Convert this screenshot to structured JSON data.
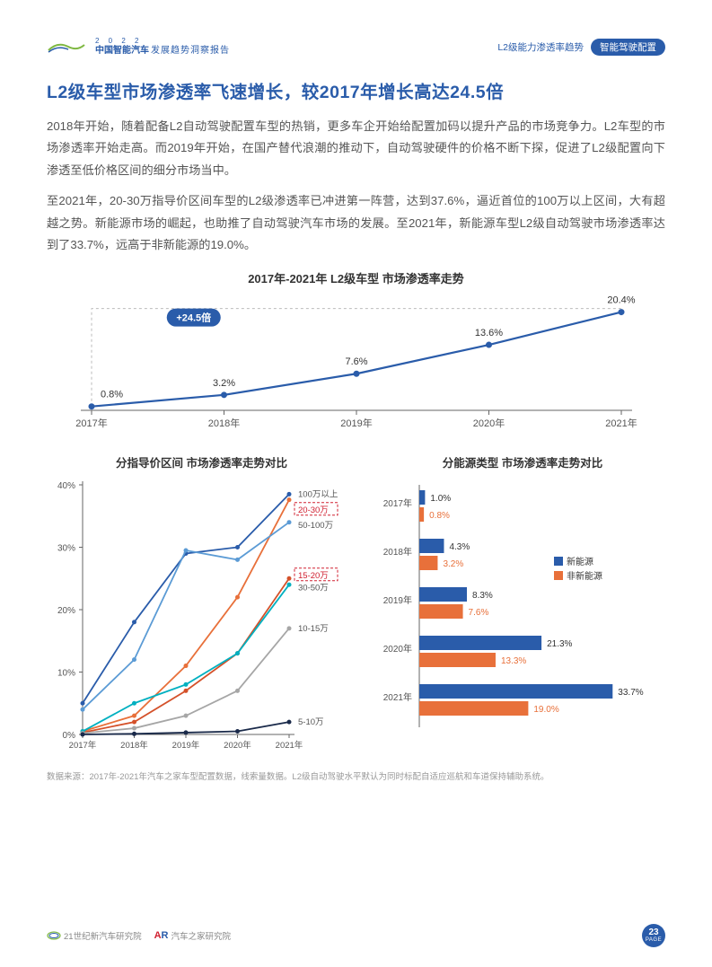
{
  "header": {
    "logo_top": "2 0 2 2",
    "logo_text": "中国智能汽车",
    "logo_sub": "发展趋势洞察报告",
    "tag1": "L2级能力渗透率趋势",
    "tag2": "智能驾驶配置"
  },
  "title": "L2级车型市场渗透率飞速增长，较2017年增长高达24.5倍",
  "para1": "2018年开始，随着配备L2自动驾驶配置车型的热销，更多车企开始给配置加码以提升产品的市场竞争力。L2车型的市场渗透率开始走高。而2019年开始，在国产替代浪潮的推动下，自动驾驶硬件的价格不断下探，促进了L2级配置向下渗透至低价格区间的细分市场当中。",
  "para2": "至2021年，20-30万指导价区间车型的L2级渗透率已冲进第一阵营，达到37.6%，逼近首位的100万以上区间，大有超越之势。新能源市场的崛起，也助推了自动驾驶汽车市场的发展。至2021年，新能源车型L2级自动驾驶市场渗透率达到了33.7%，远高于非新能源的19.0%。",
  "chart1": {
    "title": "2017年-2021年 L2级车型 市场渗透率走势",
    "badge": "+24.5倍",
    "categories": [
      "2017年",
      "2018年",
      "2019年",
      "2020年",
      "2021年"
    ],
    "values": [
      0.8,
      3.2,
      7.6,
      13.6,
      20.4
    ],
    "labels": [
      "0.8%",
      "3.2%",
      "7.6%",
      "13.6%",
      "20.4%"
    ],
    "line_color": "#2a5caa",
    "marker_color": "#2a5caa",
    "axis_color": "#666",
    "ymax": 22
  },
  "chart2": {
    "title": "分指导价区间 市场渗透率走势对比",
    "categories": [
      "2017年",
      "2018年",
      "2019年",
      "2020年",
      "2021年"
    ],
    "yticks": [
      0,
      10,
      20,
      30,
      40
    ],
    "ytick_labels": [
      "0%",
      "10%",
      "20%",
      "30%",
      "40%"
    ],
    "axis_color": "#666",
    "grid_color": "#e0e0e0",
    "series": [
      {
        "name": "100万以上",
        "color": "#2a5caa",
        "values": [
          5,
          18,
          29,
          30,
          38.5
        ],
        "label_y": 38.5,
        "highlight": false
      },
      {
        "name": "20-30万",
        "color": "#e8703a",
        "values": [
          0.5,
          3,
          11,
          22,
          37.6
        ],
        "label_y": 36,
        "highlight": true
      },
      {
        "name": "50-100万",
        "color": "#5b9bd5",
        "values": [
          4,
          12,
          29.5,
          28,
          34
        ],
        "label_y": 33.5,
        "highlight": false
      },
      {
        "name": "15-20万",
        "color": "#d4512a",
        "values": [
          0.3,
          2,
          7,
          13,
          25
        ],
        "label_y": 25.5,
        "highlight": true
      },
      {
        "name": "30-50万",
        "color": "#00b0c0",
        "values": [
          0.5,
          5,
          8,
          13,
          24
        ],
        "label_y": 23.5,
        "highlight": false
      },
      {
        "name": "10-15万",
        "color": "#a6a6a6",
        "values": [
          0.2,
          1,
          3,
          7,
          17
        ],
        "label_y": 17,
        "highlight": false
      },
      {
        "name": "5-10万",
        "color": "#1a2a4a",
        "values": [
          0,
          0.1,
          0.3,
          0.5,
          2
        ],
        "label_y": 2,
        "highlight": false
      }
    ]
  },
  "chart3": {
    "title": "分能源类型 市场渗透率走势对比",
    "years": [
      "2017年",
      "2018年",
      "2019年",
      "2020年",
      "2021年"
    ],
    "xmax": 36,
    "axis_color": "#666",
    "legend": [
      {
        "name": "新能源",
        "color": "#2a5caa"
      },
      {
        "name": "非新能源",
        "color": "#e8703a"
      }
    ],
    "rows": [
      {
        "year": "2017年",
        "new": 1.0,
        "new_label": "1.0%",
        "non": 0.8,
        "non_label": "0.8%"
      },
      {
        "year": "2018年",
        "new": 4.3,
        "new_label": "4.3%",
        "non": 3.2,
        "non_label": "3.2%"
      },
      {
        "year": "2019年",
        "new": 8.3,
        "new_label": "8.3%",
        "non": 7.6,
        "non_label": "7.6%"
      },
      {
        "year": "2020年",
        "new": 21.3,
        "new_label": "21.3%",
        "non": 13.3,
        "non_label": "13.3%"
      },
      {
        "year": "2021年",
        "new": 33.7,
        "new_label": "33.7%",
        "non": 19.0,
        "non_label": "19.0%"
      }
    ]
  },
  "footnote": "数据来源：2017年-2021年汽车之家车型配置数据，线索量数据。L2级自动驾驶水平默认为同时标配自适应巡航和车道保持辅助系统。",
  "footer": {
    "logo1": "21世纪新汽车研究院",
    "logo2": "汽车之家研究院",
    "page": "23",
    "page_sub": "PAGE"
  }
}
